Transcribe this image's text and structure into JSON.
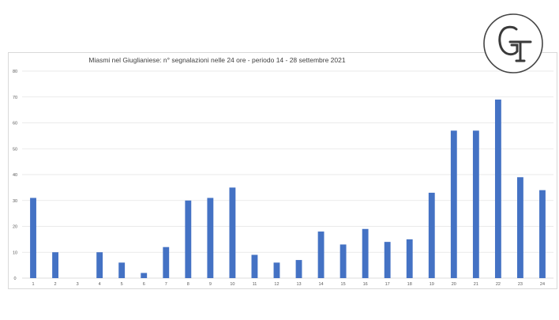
{
  "logo": {
    "text": "GT",
    "color": "#3a3a3a"
  },
  "chart_data": {
    "type": "bar",
    "title": "Miasmi nel Giuglianiese: n° segnalazioni nelle 24 ore - periodo 14 - 28 settembre 2021",
    "categories": [
      "1",
      "2",
      "3",
      "4",
      "5",
      "6",
      "7",
      "8",
      "9",
      "10",
      "11",
      "12",
      "13",
      "14",
      "15",
      "16",
      "17",
      "18",
      "19",
      "20",
      "21",
      "22",
      "23",
      "24"
    ],
    "values": [
      31,
      10,
      0,
      10,
      6,
      2,
      12,
      30,
      31,
      35,
      9,
      6,
      7,
      18,
      13,
      19,
      14,
      15,
      33,
      57,
      57,
      69,
      39,
      34
    ],
    "yticks": [
      "0",
      "10",
      "20",
      "30",
      "40",
      "50",
      "60",
      "70",
      "80"
    ],
    "ylim": [
      0,
      80
    ],
    "xlabel": "",
    "ylabel": "",
    "grid": true,
    "legend": false,
    "bar_color": "#4472c4"
  }
}
